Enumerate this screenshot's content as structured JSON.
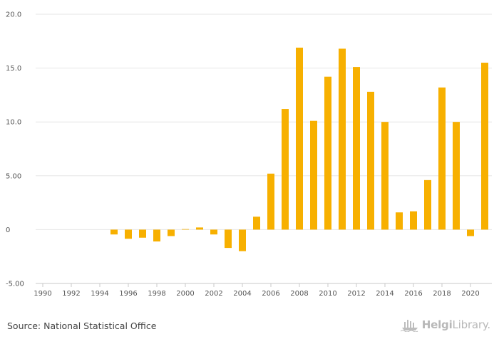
{
  "chart_data": {
    "type": "bar",
    "color": "#f7b000",
    "x": [
      1990,
      1991,
      1992,
      1993,
      1994,
      1995,
      1996,
      1997,
      1998,
      1999,
      2000,
      2001,
      2002,
      2003,
      2004,
      2005,
      2006,
      2007,
      2008,
      2009,
      2010,
      2011,
      2012,
      2013,
      2014,
      2015,
      2016,
      2017,
      2018,
      2019,
      2020,
      2021
    ],
    "values": [
      null,
      null,
      null,
      null,
      null,
      -0.45,
      -0.85,
      -0.75,
      -1.1,
      -0.6,
      0.05,
      0.2,
      -0.45,
      -1.7,
      -2.0,
      1.2,
      5.2,
      11.2,
      16.9,
      10.1,
      14.2,
      16.8,
      15.1,
      12.8,
      10.0,
      1.6,
      1.7,
      4.6,
      13.2,
      10.0,
      -0.6,
      15.5
    ],
    "ylim": [
      -5,
      20
    ],
    "yticks": [
      -5,
      0,
      5,
      10,
      15,
      20
    ],
    "ytick_labels": [
      "-5.00",
      "0",
      "5.00",
      "10.0",
      "15.0",
      "20.0"
    ],
    "xtick_labels": [
      "1990",
      "1992",
      "1994",
      "1996",
      "1998",
      "2000",
      "2002",
      "2004",
      "2006",
      "2008",
      "2010",
      "2012",
      "2014",
      "2016",
      "2018",
      "2020"
    ],
    "grid": true,
    "title": "",
    "xlabel": "",
    "ylabel": ""
  },
  "footer": {
    "source": "Source: National Statistical Office",
    "logo_text_bold": "Helgi",
    "logo_text": "Library.",
    "logo_icon": "helgi-ship-icon"
  }
}
